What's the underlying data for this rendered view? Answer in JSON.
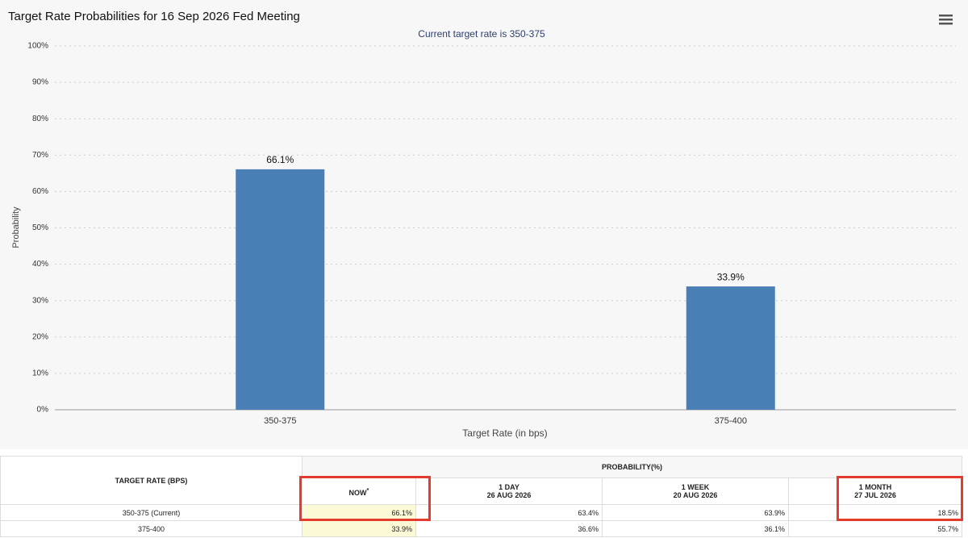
{
  "chart_data": {
    "type": "bar",
    "title": "Target Rate Probabilities for 16 Sep 2026 Fed Meeting",
    "subtitle": "Current target rate is 350-375",
    "x_label": "Target Rate (in bps)",
    "y_label": "Probability",
    "categories": [
      "350-375",
      "375-400"
    ],
    "values": [
      66.1,
      33.9
    ],
    "value_labels": [
      "66.1%",
      "33.9%"
    ],
    "color": "#4a7fb5",
    "ylim": [
      0,
      100
    ],
    "yticks": [
      {
        "value": 0,
        "label": "0%"
      },
      {
        "value": 10,
        "label": "10%"
      },
      {
        "value": 20,
        "label": "20%"
      },
      {
        "value": 30,
        "label": "30%"
      },
      {
        "value": 40,
        "label": "40%"
      },
      {
        "value": 50,
        "label": "50%"
      },
      {
        "value": 60,
        "label": "60%"
      },
      {
        "value": 70,
        "label": "70%"
      },
      {
        "value": 80,
        "label": "80%"
      },
      {
        "value": 90,
        "label": "90%"
      },
      {
        "value": 100,
        "label": "100%"
      }
    ],
    "grid": true
  },
  "table": {
    "row_header": "TARGET RATE (BPS)",
    "group_header": "PROBABILITY(%)",
    "columns": [
      {
        "label": "NOW",
        "note": "*"
      },
      {
        "label": "1 DAY",
        "date": "26 AUG 2026"
      },
      {
        "label": "1 WEEK",
        "date": "20 AUG 2026"
      },
      {
        "label": "1 MONTH",
        "date": "27 JUL 2026"
      }
    ],
    "rows": [
      [
        "350-375 (Current)",
        "66.1%",
        "63.4%",
        "63.9%",
        "18.5%"
      ],
      [
        "375-400",
        "33.9%",
        "36.6%",
        "36.1%",
        "55.7%"
      ]
    ]
  }
}
